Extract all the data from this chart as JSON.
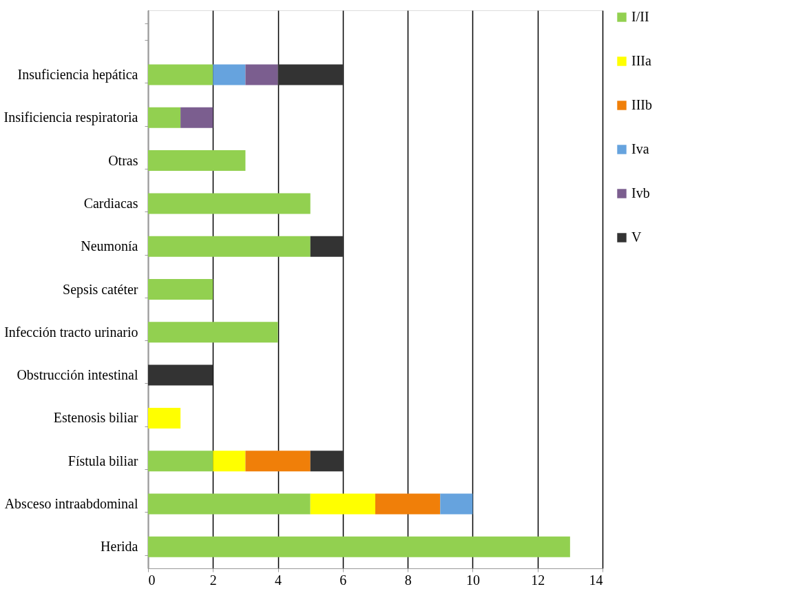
{
  "chart_data": {
    "type": "bar",
    "orientation": "horizontal",
    "stacked": true,
    "categories": [
      null,
      "Insuficiencia hepática",
      "Insificiencia respiratoria",
      "Otras",
      "Cardiacas",
      "Neumonía",
      "Sepsis catéter",
      "Infección tracto urinario",
      "Obstrucción intestinal",
      "Estenosis biliar",
      "Fístula biliar",
      "Absceso intraabdominal",
      "Herida"
    ],
    "series": [
      {
        "name": "I/II",
        "color": "#92d050",
        "values": [
          null,
          2,
          1,
          3,
          5,
          5,
          2,
          4,
          null,
          null,
          2,
          5,
          13
        ]
      },
      {
        "name": "IIIa",
        "color": "#ffff00",
        "values": [
          null,
          null,
          null,
          null,
          null,
          null,
          null,
          null,
          null,
          1,
          1,
          2,
          null
        ]
      },
      {
        "name": "IIIb",
        "color": "#f07f09",
        "values": [
          null,
          null,
          null,
          null,
          null,
          null,
          null,
          null,
          null,
          null,
          2,
          2,
          null
        ]
      },
      {
        "name": "Iva",
        "color": "#66a3de",
        "values": [
          null,
          1,
          null,
          null,
          null,
          null,
          null,
          null,
          null,
          null,
          null,
          1,
          null
        ]
      },
      {
        "name": "Ivb",
        "color": "#7b5e8f",
        "values": [
          null,
          1,
          1,
          null,
          null,
          null,
          null,
          null,
          null,
          null,
          null,
          null,
          null
        ]
      },
      {
        "name": "V",
        "color": "#333333",
        "values": [
          null,
          2,
          null,
          null,
          null,
          1,
          null,
          null,
          2,
          null,
          1,
          null,
          null
        ]
      }
    ],
    "xlim": [
      0,
      14
    ],
    "xticks": [
      0,
      2,
      4,
      6,
      8,
      10,
      12,
      14
    ],
    "grid": "x",
    "legend": "right"
  }
}
